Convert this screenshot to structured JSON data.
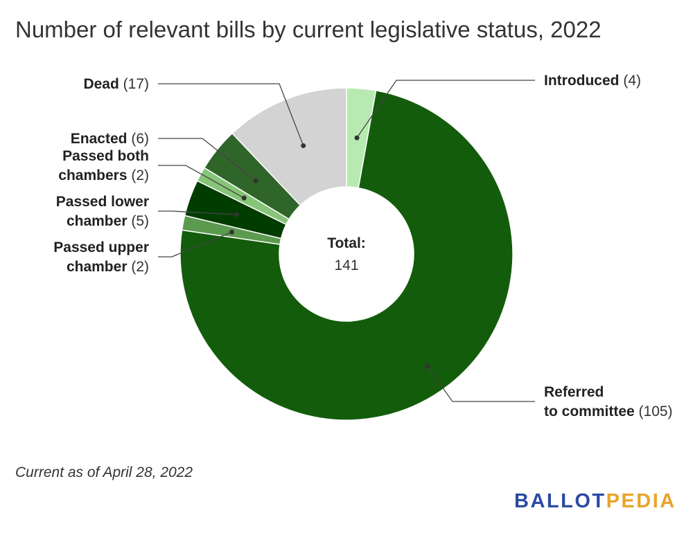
{
  "chart_data": {
    "type": "pie",
    "title": "Number of relevant bills by current legislative status, 2022",
    "donut": true,
    "center_label": "Total:",
    "center_value": "141",
    "slices": [
      {
        "name": "Introduced",
        "value": 4,
        "count_text": "(4)",
        "color": "#b7eab0"
      },
      {
        "name": "Referred to committee",
        "value": 105,
        "count_text": "(105)",
        "color": "#135c0b"
      },
      {
        "name": "Passed upper chamber",
        "value": 2,
        "count_text": "(2)",
        "color": "#5c9a50"
      },
      {
        "name": "Passed lower chamber",
        "value": 5,
        "count_text": "(5)",
        "color": "#023d00"
      },
      {
        "name": "Passed both chambers",
        "value": 2,
        "count_text": "(2)",
        "color": "#86c478"
      },
      {
        "name": "Enacted",
        "value": 6,
        "count_text": "(6)",
        "color": "#30652a"
      },
      {
        "name": "Dead",
        "value": 17,
        "count_text": "(17)",
        "color": "#d3d3d3"
      }
    ]
  },
  "footnote": "Current as of April 28, 2022",
  "logo": {
    "part1": "BALLOT",
    "part2": "PEDIA"
  }
}
